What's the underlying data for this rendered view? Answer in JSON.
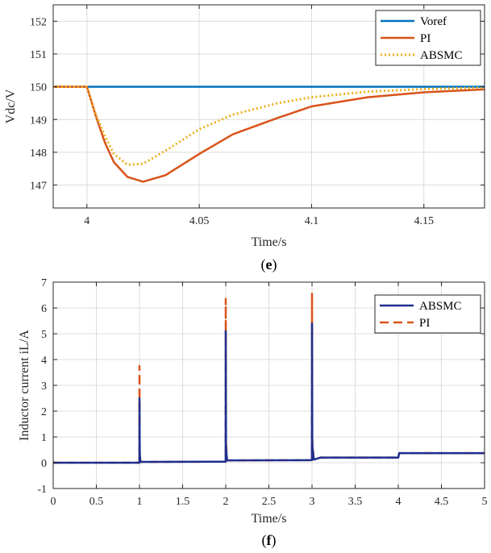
{
  "chart_data": [
    {
      "type": "line",
      "panel_label": "(e)",
      "panel_letter": "e",
      "xlabel": "Time/s",
      "ylabel": "Vdc/V",
      "xlim": [
        3.985,
        4.177
      ],
      "ylim": [
        146.3,
        152.5
      ],
      "xticks": [
        4,
        4.05,
        4.1,
        4.15
      ],
      "xtick_labels": [
        "4",
        "4.05",
        "4.1",
        "4.15"
      ],
      "yticks": [
        147,
        148,
        149,
        150,
        151,
        152
      ],
      "ytick_labels": [
        "147",
        "148",
        "149",
        "150",
        "151",
        "152"
      ],
      "grid": true,
      "legend_position": "top-right",
      "series": [
        {
          "name": "Voref",
          "color": "#0072BD",
          "dash": "solid",
          "x": [
            3.985,
            4.177
          ],
          "y": [
            150.0,
            150.0
          ]
        },
        {
          "name": "PI",
          "color": "#D95319",
          "dash": "solid",
          "x": [
            3.985,
            4.0,
            4.004,
            4.008,
            4.012,
            4.018,
            4.025,
            4.035,
            4.05,
            4.065,
            4.085,
            4.1,
            4.125,
            4.15,
            4.177
          ],
          "y": [
            150.0,
            150.0,
            149.1,
            148.3,
            147.7,
            147.25,
            147.1,
            147.3,
            147.95,
            148.55,
            149.05,
            149.4,
            149.68,
            149.83,
            149.92
          ]
        },
        {
          "name": "ABSMC",
          "color": "#EDB120",
          "dash": "dotted",
          "x": [
            3.985,
            4.0,
            4.004,
            4.008,
            4.012,
            4.018,
            4.025,
            4.035,
            4.05,
            4.065,
            4.085,
            4.1,
            4.125,
            4.15,
            4.177
          ],
          "y": [
            150.0,
            150.0,
            149.15,
            148.5,
            147.95,
            147.62,
            147.65,
            148.05,
            148.7,
            149.15,
            149.5,
            149.68,
            149.85,
            149.93,
            149.97
          ]
        }
      ]
    },
    {
      "type": "line",
      "panel_label": "(f)",
      "panel_letter": "f",
      "xlabel": "Time/s",
      "ylabel": "Inductor current iL/A",
      "xlim": [
        0,
        5
      ],
      "ylim": [
        -1,
        7
      ],
      "xticks": [
        0,
        0.5,
        1,
        1.5,
        2,
        2.5,
        3,
        3.5,
        4,
        4.5,
        5
      ],
      "xtick_labels": [
        "0",
        "0.5",
        "1",
        "1.5",
        "2",
        "2.5",
        "3",
        "3.5",
        "4",
        "4.5",
        "5"
      ],
      "yticks": [
        -1,
        0,
        1,
        2,
        3,
        4,
        5,
        6,
        7
      ],
      "ytick_labels": [
        "-1",
        "0",
        "1",
        "2",
        "3",
        "4",
        "5",
        "6",
        "7"
      ],
      "grid": true,
      "legend_position": "top-right",
      "series": [
        {
          "name": "PI",
          "color": "#D95319",
          "dash": "dashed",
          "x": [
            0,
            0.999,
            1.0,
            1.003,
            1.01,
            1.999,
            2.0,
            2.003,
            2.015,
            2.999,
            3.0,
            3.003,
            3.02,
            3.1,
            3.999,
            4.0,
            4.01,
            5.0
          ],
          "y": [
            0,
            0,
            3.75,
            0.5,
            0.03,
            0.04,
            6.35,
            0.8,
            0.09,
            0.1,
            6.55,
            0.9,
            0.12,
            0.2,
            0.2,
            0.2,
            0.37,
            0.37
          ]
        },
        {
          "name": "ABSMC",
          "color": "#1F2F8F",
          "dash": "solid",
          "x": [
            0,
            0.999,
            1.0,
            1.003,
            1.01,
            1.999,
            2.0,
            2.003,
            2.015,
            2.999,
            3.0,
            3.003,
            3.02,
            3.1,
            3.999,
            4.0,
            4.01,
            5.0
          ],
          "y": [
            0,
            0,
            2.5,
            0.4,
            0.03,
            0.04,
            5.1,
            0.6,
            0.09,
            0.1,
            5.4,
            0.7,
            0.12,
            0.2,
            0.2,
            0.2,
            0.37,
            0.37
          ]
        }
      ],
      "legend_order": [
        "ABSMC",
        "PI"
      ]
    }
  ]
}
